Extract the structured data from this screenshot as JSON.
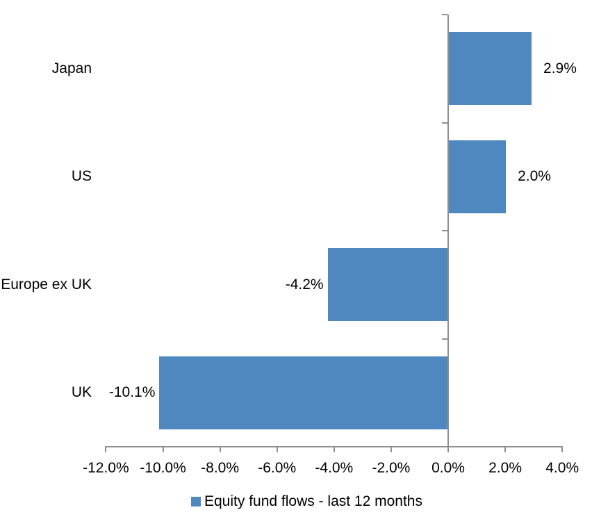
{
  "chart_data": {
    "type": "bar",
    "orientation": "horizontal",
    "title": "",
    "xlabel": "",
    "ylabel": "",
    "categories": [
      "Japan",
      "US",
      "Europe ex UK",
      "UK"
    ],
    "series": [
      {
        "name": "Equity fund flows - last 12 months",
        "values": [
          2.9,
          2.0,
          -4.2,
          -10.1
        ],
        "data_labels": [
          "2.9%",
          "2.0%",
          "-4.2%",
          "-10.1%"
        ]
      }
    ],
    "xlim": [
      -12,
      4
    ],
    "x_tick_values": [
      -12,
      -10,
      -8,
      -6,
      -4,
      -2,
      0,
      2,
      4
    ],
    "x_tick_labels": [
      "-12.0%",
      "-10.0%",
      "-8.0%",
      "-6.0%",
      "-4.0%",
      "-2.0%",
      "0.0%",
      "2.0%",
      "4.0%"
    ],
    "grid": false,
    "legend_position": "bottom",
    "colors": {
      "bar": "#4E88BE",
      "axis": "#8F8F8F",
      "text": "#000000",
      "background": "#FFFFFF"
    }
  },
  "legend": {
    "items": [
      {
        "label": "Equity fund flows - last 12 months",
        "swatch_color": "#4E88BE"
      }
    ]
  }
}
